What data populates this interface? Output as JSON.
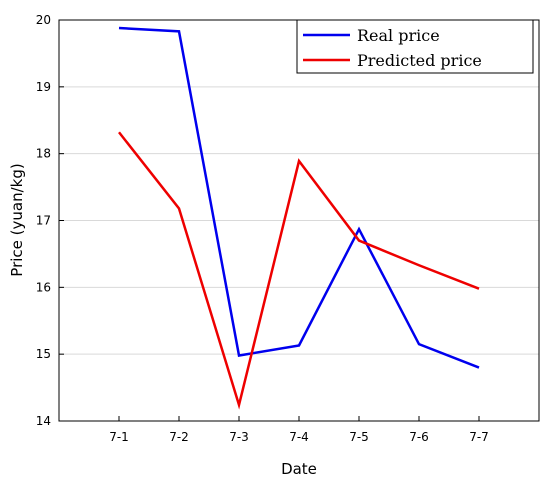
{
  "chart_data": {
    "type": "line",
    "categories": [
      "7-1",
      "7-2",
      "7-3",
      "7-4",
      "7-5",
      "7-6",
      "7-7"
    ],
    "series": [
      {
        "name": "Real price",
        "color": "#0000ee",
        "values": [
          19.88,
          19.83,
          14.98,
          15.13,
          16.87,
          15.15,
          14.8
        ]
      },
      {
        "name": "Predicted price",
        "color": "#ee0000",
        "values": [
          18.32,
          17.18,
          14.24,
          17.89,
          16.7,
          16.33,
          15.98
        ]
      }
    ],
    "xlabel": "Date",
    "ylabel": "Price (yuan/kg)",
    "ylim": [
      14,
      20
    ],
    "yticks": [
      14,
      15,
      16,
      17,
      18,
      19,
      20
    ],
    "grid": "horizontal",
    "legend": "top-right"
  }
}
